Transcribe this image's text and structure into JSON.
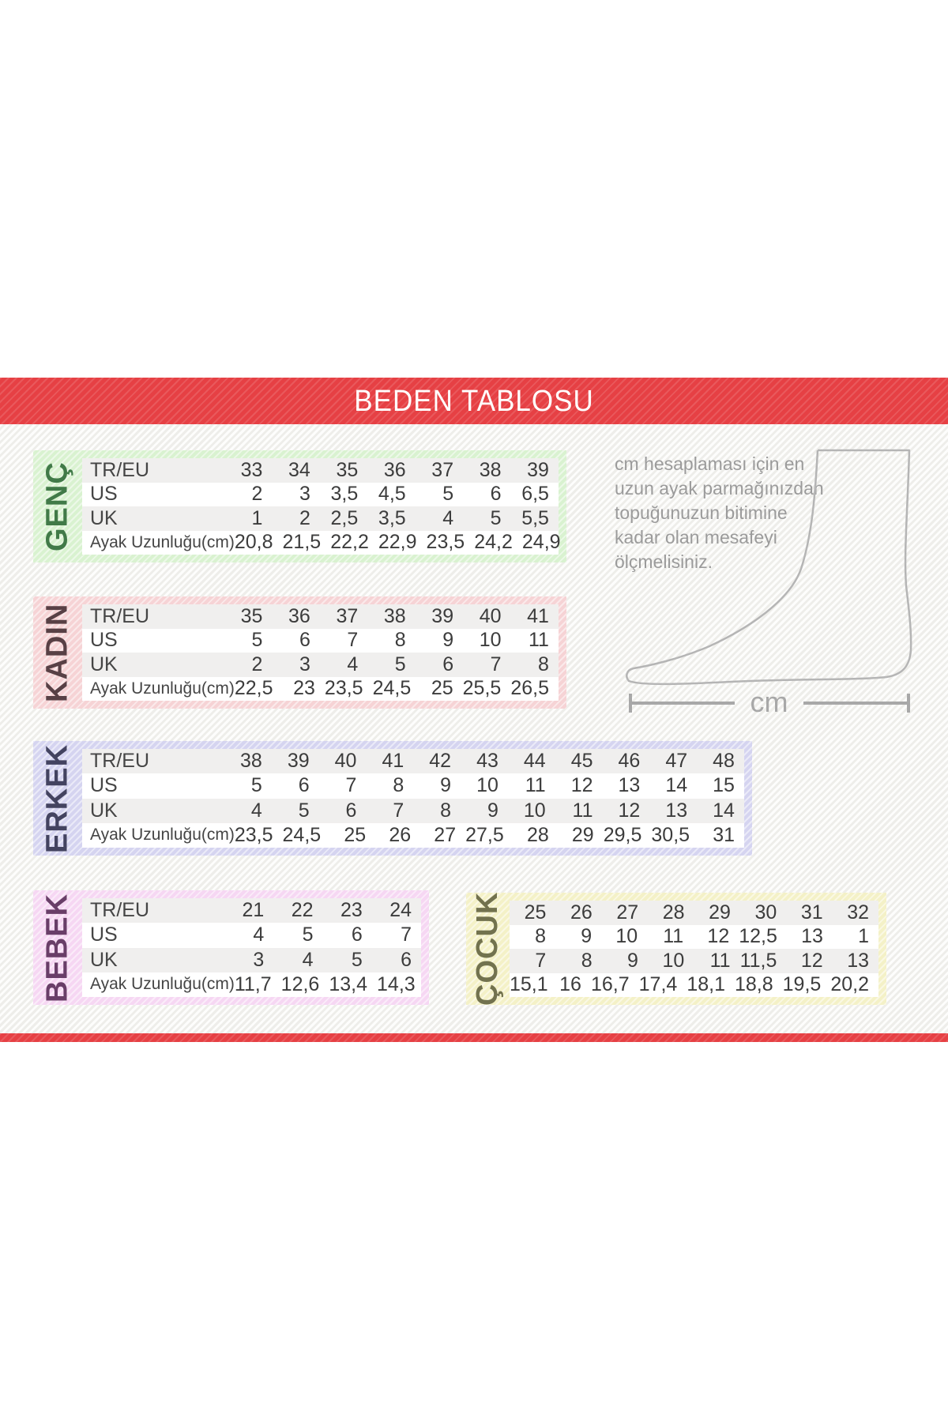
{
  "title": "BEDEN TABLOSU",
  "banner_color": "#e64044",
  "note": {
    "text": "cm hesaplaması için en\nuzun ayak parmağınızdan\ntopuğunuzun bitimine\nkadar olan mesafeyi\nölçmelisiniz."
  },
  "ruler_label": "cm",
  "chart_data": [
    {
      "type": "table",
      "title": "GENÇ",
      "accent": "#d9f2d0",
      "label_color": "#417a48",
      "row_labels": [
        "TR/EU",
        "US",
        "UK",
        "Ayak Uzunluğu(cm)"
      ],
      "rows": [
        [
          "33",
          "34",
          "35",
          "36",
          "37",
          "38",
          "39"
        ],
        [
          "2",
          "3",
          "3,5",
          "4,5",
          "5",
          "6",
          "6,5"
        ],
        [
          "1",
          "2",
          "2,5",
          "3,5",
          "4",
          "5",
          "5,5"
        ],
        [
          "20,8",
          "21,5",
          "22,2",
          "22,9",
          "23,5",
          "24,2",
          "24,9"
        ]
      ]
    },
    {
      "type": "table",
      "title": "KADIN",
      "accent": "#f6d3d5",
      "label_color": "#584045",
      "row_labels": [
        "TR/EU",
        "US",
        "UK",
        "Ayak Uzunluğu(cm)"
      ],
      "rows": [
        [
          "35",
          "36",
          "37",
          "38",
          "39",
          "40",
          "41"
        ],
        [
          "5",
          "6",
          "7",
          "8",
          "9",
          "10",
          "11"
        ],
        [
          "2",
          "3",
          "4",
          "5",
          "6",
          "7",
          "8"
        ],
        [
          "22,5",
          "23",
          "23,5",
          "24,5",
          "25",
          "25,5",
          "26,5"
        ]
      ]
    },
    {
      "type": "table",
      "title": "ERKEK",
      "accent": "#d5d4f0",
      "label_color": "#434360",
      "row_labels": [
        "TR/EU",
        "US",
        "UK",
        "Ayak Uzunluğu(cm)"
      ],
      "rows": [
        [
          "38",
          "39",
          "40",
          "41",
          "42",
          "43",
          "44",
          "45",
          "46",
          "47",
          "48"
        ],
        [
          "5",
          "6",
          "7",
          "8",
          "9",
          "10",
          "11",
          "12",
          "13",
          "14",
          "15"
        ],
        [
          "4",
          "5",
          "6",
          "7",
          "8",
          "9",
          "10",
          "11",
          "12",
          "13",
          "14"
        ],
        [
          "23,5",
          "24,5",
          "25",
          "26",
          "27",
          "27,5",
          "28",
          "29",
          "29,5",
          "30,5",
          "31"
        ]
      ]
    },
    {
      "type": "table",
      "title": "BEBEK",
      "accent": "#f6d7f3",
      "label_color": "#693e68",
      "row_labels": [
        "TR/EU",
        "US",
        "UK",
        "Ayak Uzunluğu(cm)"
      ],
      "rows": [
        [
          "21",
          "22",
          "23",
          "24"
        ],
        [
          "4",
          "5",
          "6",
          "7"
        ],
        [
          "3",
          "4",
          "5",
          "6"
        ],
        [
          "11,7",
          "12,6",
          "13,4",
          "14,3"
        ]
      ]
    },
    {
      "type": "table",
      "title": "ÇOCUK",
      "accent": "#f4f1c7",
      "label_color": "#72724e",
      "row_labels": [],
      "rows": [
        [
          "25",
          "26",
          "27",
          "28",
          "29",
          "30",
          "31",
          "32"
        ],
        [
          "8",
          "9",
          "10",
          "11",
          "12",
          "12,5",
          "13",
          "1"
        ],
        [
          "7",
          "8",
          "9",
          "10",
          "11",
          "11,5",
          "12",
          "13"
        ],
        [
          "15,1",
          "16",
          "16,7",
          "17,4",
          "18,1",
          "18,8",
          "19,5",
          "20,2"
        ]
      ]
    }
  ]
}
